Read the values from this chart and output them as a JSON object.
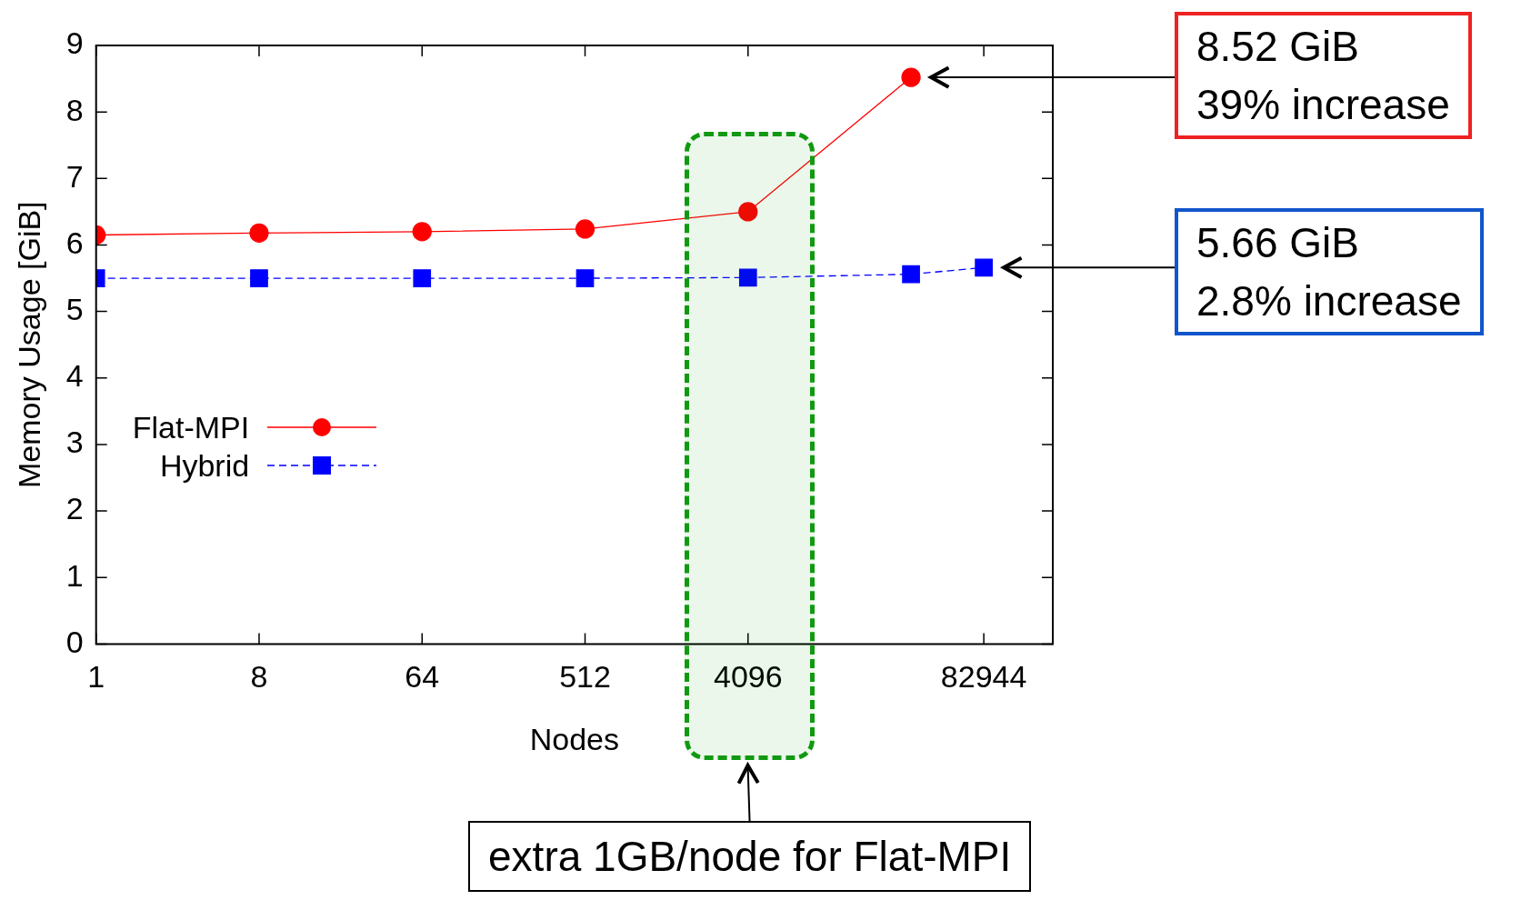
{
  "chart_data": {
    "type": "line",
    "xlabel": "Nodes",
    "ylabel": "Memory Usage [GiB]",
    "log": "x",
    "xlim": [
      1,
      200000
    ],
    "xticks": [
      1,
      8,
      64,
      512,
      4096,
      82944
    ],
    "ylim": [
      0,
      9
    ],
    "yticks": [
      0,
      1,
      2,
      3,
      4,
      5,
      6,
      7,
      8,
      9
    ],
    "grid": false,
    "legend": "left",
    "series": [
      {
        "name": "Flat-MPI",
        "color": "#ff0000",
        "marker": "circle",
        "line_style": "solid",
        "x": [
          1,
          8,
          64,
          512,
          4096,
          32768
        ],
        "values": [
          6.15,
          6.18,
          6.2,
          6.24,
          6.5,
          8.52
        ]
      },
      {
        "name": "Hybrid",
        "color": "#0000ff",
        "marker": "square",
        "line_style": "dashed",
        "x": [
          1,
          8,
          64,
          512,
          4096,
          32768,
          82944
        ],
        "values": [
          5.5,
          5.5,
          5.5,
          5.5,
          5.51,
          5.56,
          5.66
        ]
      }
    ],
    "bands": [
      {
        "axis": "x",
        "from": 1820,
        "to": 9600,
        "color": "#119911"
      }
    ],
    "annotations": [
      "8.52 GiB\n39% increase",
      "5.66 GiB\n2.8% increase",
      "extra 1GB/node for Flat-MPI"
    ]
  }
}
